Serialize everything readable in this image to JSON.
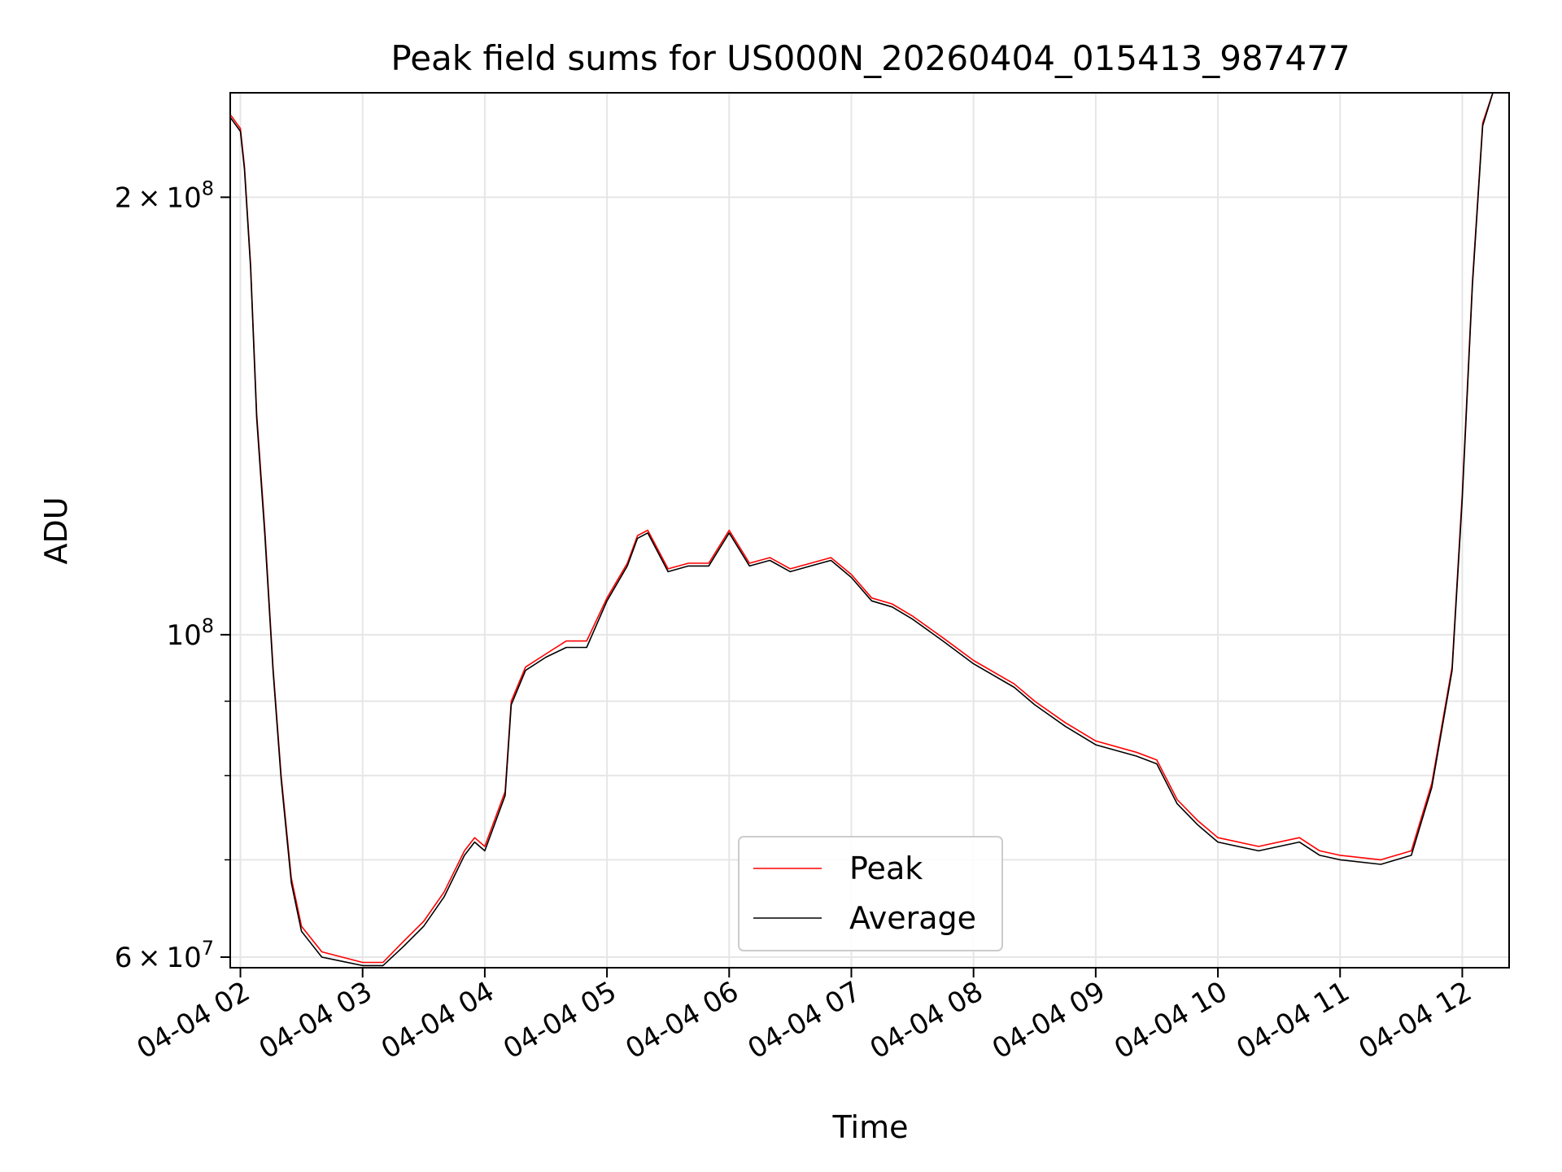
{
  "chart_data": {
    "type": "line",
    "title": "Peak field sums for US000N_20260404_015413_987477",
    "xlabel": "Time",
    "ylabel": "ADU",
    "y_scale": "log",
    "ylim": [
      59000000,
      236000000
    ],
    "xlim": [
      "2026-04-04 01:55",
      "2026-04-04 12:23"
    ],
    "grid": true,
    "legend_position": "lower center",
    "x_ticks": [
      "2026-04-04 02:00",
      "2026-04-04 03:00",
      "2026-04-04 04:00",
      "2026-04-04 05:00",
      "2026-04-04 06:00",
      "2026-04-04 07:00",
      "2026-04-04 08:00",
      "2026-04-04 09:00",
      "2026-04-04 10:00",
      "2026-04-04 11:00",
      "2026-04-04 12:00"
    ],
    "x_tick_labels": [
      "04-04 02",
      "04-04 03",
      "04-04 04",
      "04-04 05",
      "04-04 06",
      "04-04 07",
      "04-04 08",
      "04-04 09",
      "04-04 10",
      "04-04 11",
      "04-04 12"
    ],
    "y_major_ticks": [
      {
        "value": 60000000,
        "mantissa": "6",
        "base": "10",
        "exp": "7"
      },
      {
        "value": 100000000,
        "mantissa": "",
        "base": "10",
        "exp": "8"
      },
      {
        "value": 200000000,
        "mantissa": "2",
        "base": "10",
        "exp": "8"
      }
    ],
    "y_minor_ticks": [
      60000000,
      70000000,
      80000000,
      90000000,
      100000000,
      200000000
    ],
    "series": [
      {
        "name": "Peak",
        "color": "#ff0000",
        "points": [
          [
            "2026-04-04 01:55",
            228000000
          ],
          [
            "2026-04-04 02:00",
            223000000
          ],
          [
            "2026-04-04 02:02",
            210000000
          ],
          [
            "2026-04-04 02:05",
            180000000
          ],
          [
            "2026-04-04 02:08",
            142000000
          ],
          [
            "2026-04-04 02:12",
            118000000
          ],
          [
            "2026-04-04 02:16",
            95000000
          ],
          [
            "2026-04-04 02:20",
            80000000
          ],
          [
            "2026-04-04 02:25",
            68000000
          ],
          [
            "2026-04-04 02:30",
            63000000
          ],
          [
            "2026-04-04 02:40",
            60500000
          ],
          [
            "2026-04-04 02:50",
            60000000
          ],
          [
            "2026-04-04 03:00",
            59500000
          ],
          [
            "2026-04-04 03:10",
            59500000
          ],
          [
            "2026-04-04 03:20",
            61500000
          ],
          [
            "2026-04-04 03:30",
            63500000
          ],
          [
            "2026-04-04 03:40",
            66500000
          ],
          [
            "2026-04-04 03:50",
            71000000
          ],
          [
            "2026-04-04 03:55",
            72500000
          ],
          [
            "2026-04-04 04:00",
            71500000
          ],
          [
            "2026-04-04 04:10",
            78000000
          ],
          [
            "2026-04-04 04:13",
            90000000
          ],
          [
            "2026-04-04 04:20",
            95000000
          ],
          [
            "2026-04-04 04:30",
            97000000
          ],
          [
            "2026-04-04 04:40",
            99000000
          ],
          [
            "2026-04-04 04:50",
            99000000
          ],
          [
            "2026-04-04 05:00",
            106000000
          ],
          [
            "2026-04-04 05:10",
            112000000
          ],
          [
            "2026-04-04 05:15",
            117000000
          ],
          [
            "2026-04-04 05:20",
            118000000
          ],
          [
            "2026-04-04 05:30",
            111000000
          ],
          [
            "2026-04-04 05:40",
            112000000
          ],
          [
            "2026-04-04 05:50",
            112000000
          ],
          [
            "2026-04-04 06:00",
            118000000
          ],
          [
            "2026-04-04 06:10",
            112000000
          ],
          [
            "2026-04-04 06:20",
            113000000
          ],
          [
            "2026-04-04 06:30",
            111000000
          ],
          [
            "2026-04-04 06:40",
            112000000
          ],
          [
            "2026-04-04 06:50",
            113000000
          ],
          [
            "2026-04-04 07:00",
            110000000
          ],
          [
            "2026-04-04 07:10",
            106000000
          ],
          [
            "2026-04-04 07:20",
            105000000
          ],
          [
            "2026-04-04 07:30",
            103000000
          ],
          [
            "2026-04-04 07:45",
            99500000
          ],
          [
            "2026-04-04 08:00",
            96000000
          ],
          [
            "2026-04-04 08:20",
            92500000
          ],
          [
            "2026-04-04 08:30",
            90000000
          ],
          [
            "2026-04-04 08:45",
            87000000
          ],
          [
            "2026-04-04 09:00",
            84500000
          ],
          [
            "2026-04-04 09:20",
            83000000
          ],
          [
            "2026-04-04 09:30",
            82000000
          ],
          [
            "2026-04-04 09:40",
            77000000
          ],
          [
            "2026-04-04 09:50",
            74500000
          ],
          [
            "2026-04-04 10:00",
            72500000
          ],
          [
            "2026-04-04 10:20",
            71500000
          ],
          [
            "2026-04-04 10:40",
            72500000
          ],
          [
            "2026-04-04 10:50",
            71000000
          ],
          [
            "2026-04-04 11:00",
            70500000
          ],
          [
            "2026-04-04 11:20",
            70000000
          ],
          [
            "2026-04-04 11:35",
            71000000
          ],
          [
            "2026-04-04 11:45",
            79000000
          ],
          [
            "2026-04-04 11:55",
            95000000
          ],
          [
            "2026-04-04 12:00",
            125000000
          ],
          [
            "2026-04-04 12:05",
            175000000
          ],
          [
            "2026-04-04 12:10",
            225000000
          ],
          [
            "2026-04-04 12:15",
            236000000
          ]
        ]
      },
      {
        "name": "Average",
        "color": "#000000",
        "points": [
          [
            "2026-04-04 01:55",
            227000000
          ],
          [
            "2026-04-04 02:00",
            222000000
          ],
          [
            "2026-04-04 02:02",
            209000000
          ],
          [
            "2026-04-04 02:05",
            179000000
          ],
          [
            "2026-04-04 02:08",
            141000000
          ],
          [
            "2026-04-04 02:12",
            117000000
          ],
          [
            "2026-04-04 02:16",
            94500000
          ],
          [
            "2026-04-04 02:20",
            79500000
          ],
          [
            "2026-04-04 02:25",
            67500000
          ],
          [
            "2026-04-04 02:30",
            62500000
          ],
          [
            "2026-04-04 02:40",
            60000000
          ],
          [
            "2026-04-04 02:50",
            59600000
          ],
          [
            "2026-04-04 03:00",
            59200000
          ],
          [
            "2026-04-04 03:10",
            59200000
          ],
          [
            "2026-04-04 03:20",
            61000000
          ],
          [
            "2026-04-04 03:30",
            63000000
          ],
          [
            "2026-04-04 03:40",
            66000000
          ],
          [
            "2026-04-04 03:50",
            70500000
          ],
          [
            "2026-04-04 03:55",
            72000000
          ],
          [
            "2026-04-04 04:00",
            71000000
          ],
          [
            "2026-04-04 04:10",
            77500000
          ],
          [
            "2026-04-04 04:13",
            89500000
          ],
          [
            "2026-04-04 04:20",
            94500000
          ],
          [
            "2026-04-04 04:30",
            96500000
          ],
          [
            "2026-04-04 04:40",
            98000000
          ],
          [
            "2026-04-04 04:50",
            98000000
          ],
          [
            "2026-04-04 05:00",
            105500000
          ],
          [
            "2026-04-04 05:10",
            111500000
          ],
          [
            "2026-04-04 05:15",
            116500000
          ],
          [
            "2026-04-04 05:20",
            117500000
          ],
          [
            "2026-04-04 05:30",
            110500000
          ],
          [
            "2026-04-04 05:40",
            111500000
          ],
          [
            "2026-04-04 05:50",
            111500000
          ],
          [
            "2026-04-04 06:00",
            117500000
          ],
          [
            "2026-04-04 06:10",
            111500000
          ],
          [
            "2026-04-04 06:20",
            112500000
          ],
          [
            "2026-04-04 06:30",
            110500000
          ],
          [
            "2026-04-04 06:40",
            111500000
          ],
          [
            "2026-04-04 06:50",
            112500000
          ],
          [
            "2026-04-04 07:00",
            109500000
          ],
          [
            "2026-04-04 07:10",
            105500000
          ],
          [
            "2026-04-04 07:20",
            104500000
          ],
          [
            "2026-04-04 07:30",
            102500000
          ],
          [
            "2026-04-04 07:45",
            99000000
          ],
          [
            "2026-04-04 08:00",
            95500000
          ],
          [
            "2026-04-04 08:20",
            92000000
          ],
          [
            "2026-04-04 08:30",
            89500000
          ],
          [
            "2026-04-04 08:45",
            86500000
          ],
          [
            "2026-04-04 09:00",
            84000000
          ],
          [
            "2026-04-04 09:20",
            82500000
          ],
          [
            "2026-04-04 09:30",
            81500000
          ],
          [
            "2026-04-04 09:40",
            76500000
          ],
          [
            "2026-04-04 09:50",
            74000000
          ],
          [
            "2026-04-04 10:00",
            72000000
          ],
          [
            "2026-04-04 10:20",
            71000000
          ],
          [
            "2026-04-04 10:40",
            72000000
          ],
          [
            "2026-04-04 10:50",
            70500000
          ],
          [
            "2026-04-04 11:00",
            70000000
          ],
          [
            "2026-04-04 11:20",
            69500000
          ],
          [
            "2026-04-04 11:35",
            70500000
          ],
          [
            "2026-04-04 11:45",
            78500000
          ],
          [
            "2026-04-04 11:55",
            94500000
          ],
          [
            "2026-04-04 12:00",
            124000000
          ],
          [
            "2026-04-04 12:05",
            174000000
          ],
          [
            "2026-04-04 12:10",
            224000000
          ],
          [
            "2026-04-04 12:15",
            236000000
          ]
        ]
      }
    ]
  }
}
